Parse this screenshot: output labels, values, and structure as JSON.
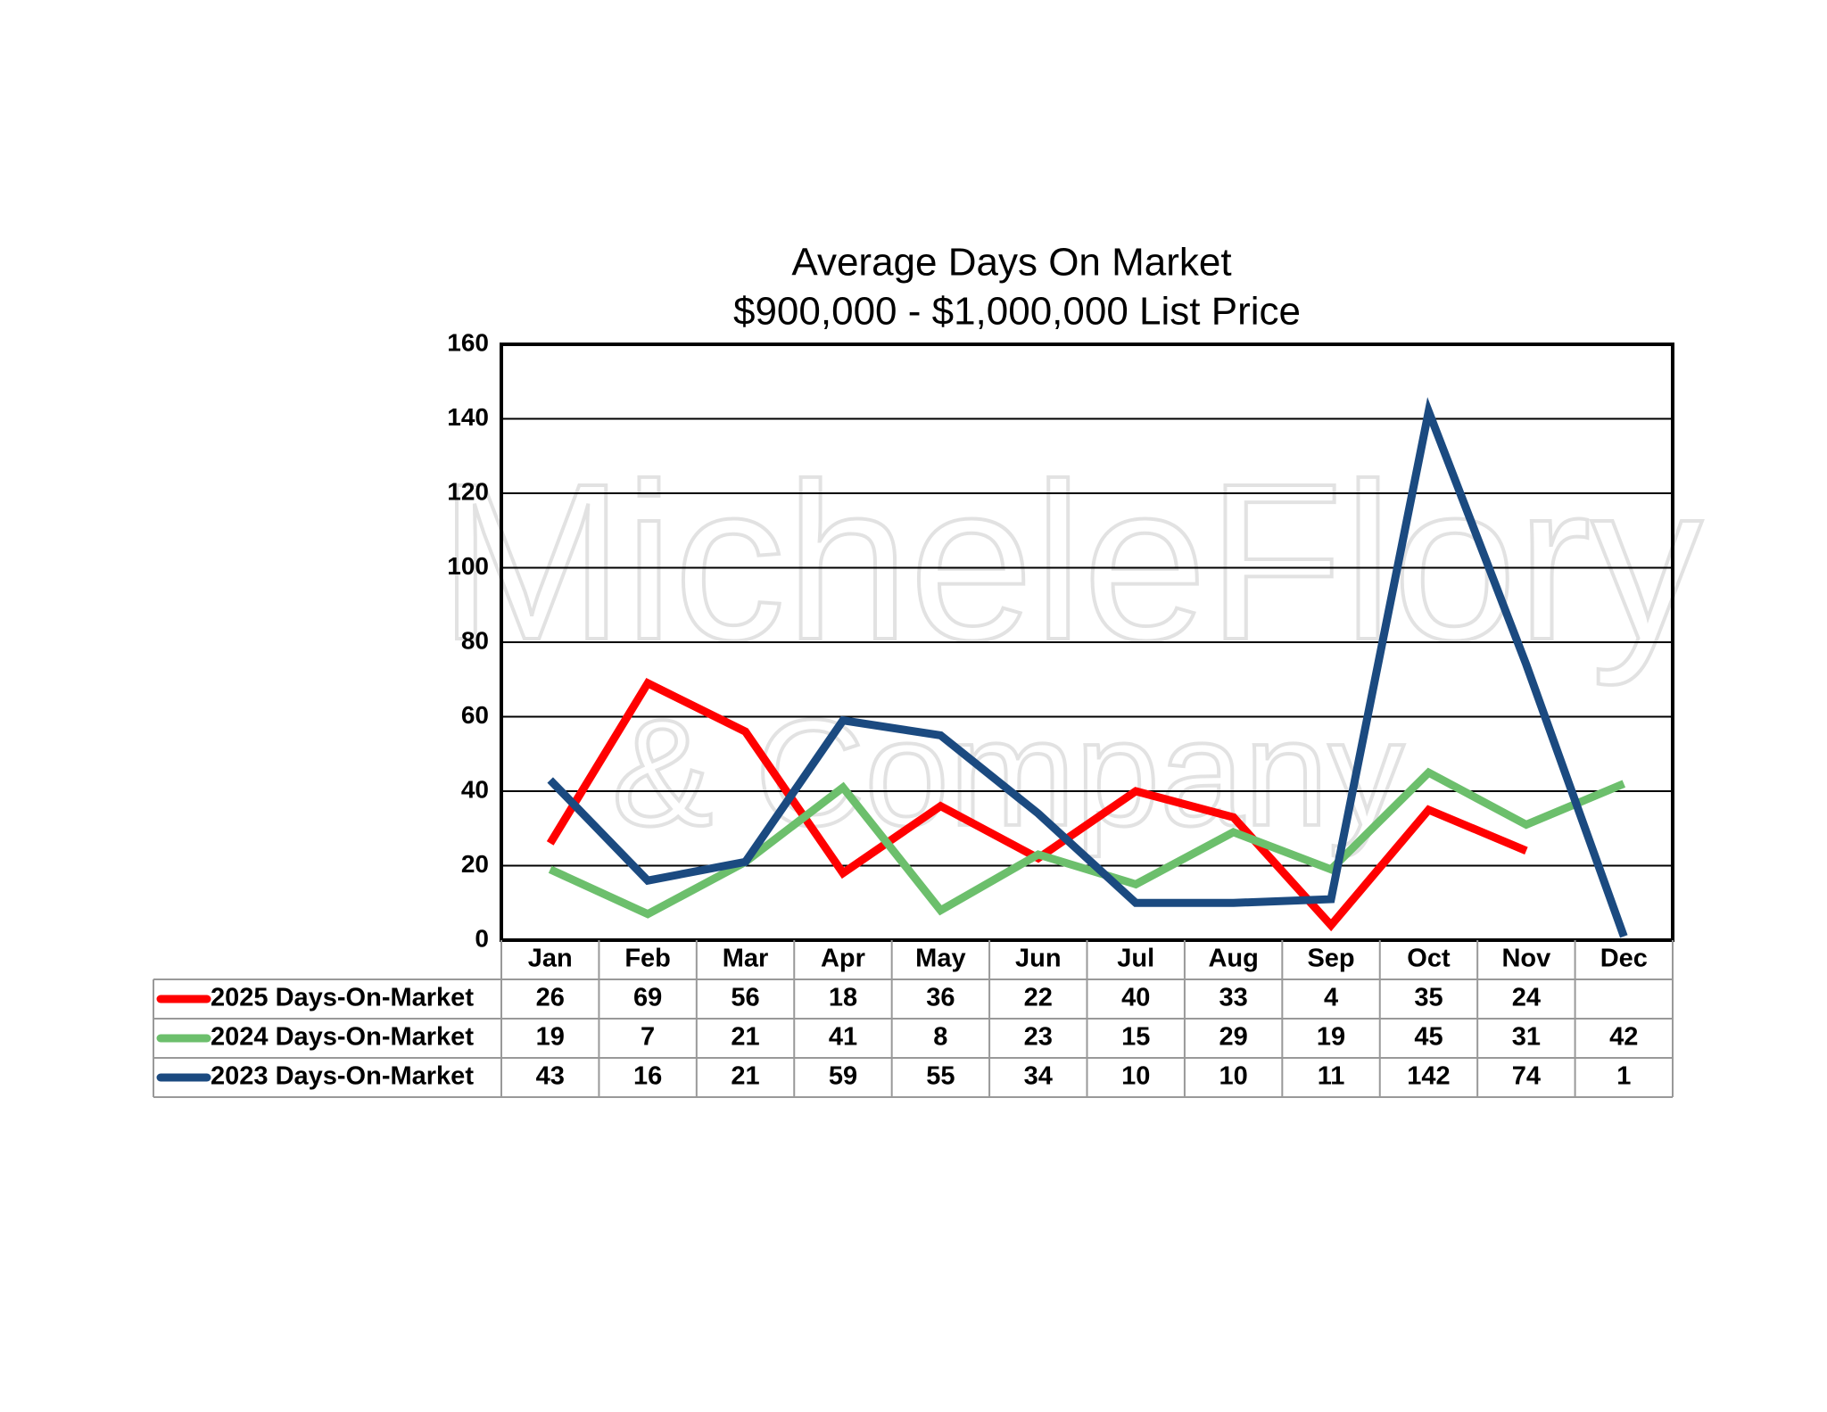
{
  "chart_data": {
    "type": "line",
    "title": "Average Days On Market",
    "subtitle": "$900,000 - $1,000,000 List Price",
    "watermark": [
      "MicheleFlory",
      "& Company"
    ],
    "categories": [
      "Jan",
      "Feb",
      "Mar",
      "Apr",
      "May",
      "Jun",
      "Jul",
      "Aug",
      "Sep",
      "Oct",
      "Nov",
      "Dec"
    ],
    "series": [
      {
        "name": "2025 Days-On-Market",
        "color": "#ff0000",
        "values": [
          26,
          69,
          56,
          18,
          36,
          22,
          40,
          33,
          4,
          35,
          24,
          null
        ]
      },
      {
        "name": "2024 Days-On-Market",
        "color": "#6cbf6c",
        "values": [
          19,
          7,
          21,
          41,
          8,
          23,
          15,
          29,
          19,
          45,
          31,
          42
        ]
      },
      {
        "name": "2023 Days-On-Market",
        "color": "#1b4a80",
        "values": [
          43,
          16,
          21,
          59,
          55,
          34,
          10,
          10,
          11,
          142,
          74,
          1
        ]
      }
    ],
    "ylim": [
      0,
      160
    ],
    "yticks": [
      0,
      20,
      40,
      60,
      80,
      100,
      120,
      140,
      160
    ],
    "grid": true
  }
}
